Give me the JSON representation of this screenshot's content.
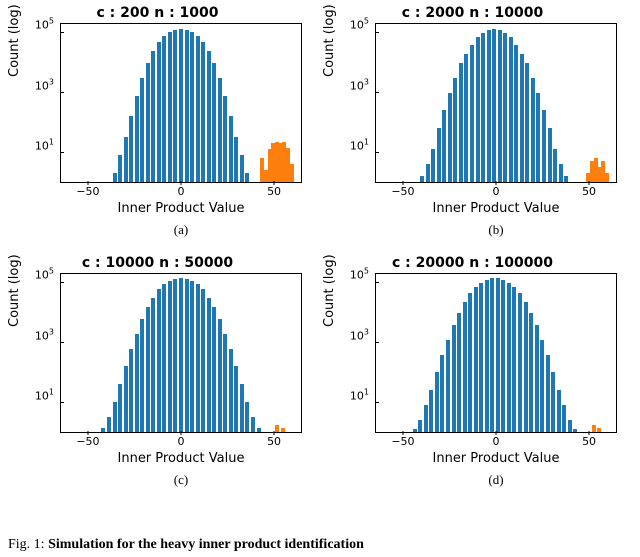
{
  "caption_prefix": "Fig. 1: ",
  "caption_bold": "Simulation for the heavy inner product identification",
  "global": {
    "xlabel": "Inner Product Value",
    "ylabel": "Count (log)",
    "title_fontsize": 14,
    "label_fontsize": 13,
    "tick_fontsize": 11,
    "bar_blue": "#1f77b4",
    "bar_orange": "#ff7f0e",
    "background_color": "#ffffff",
    "border_color": "#000000",
    "xlim": [
      -65,
      65
    ],
    "ylim_log": [
      0,
      5.3
    ],
    "xticks": [
      -50,
      0,
      50
    ],
    "ytick_exponents": [
      1,
      3,
      5
    ],
    "bar_width_units": 2.2
  },
  "panels": [
    {
      "id": "a",
      "title": "c : 200 n : 1000",
      "subcap": "(a)",
      "blue_bars": [
        {
          "x": -36,
          "log_h": 0.3
        },
        {
          "x": -33,
          "log_h": 0.9
        },
        {
          "x": -30,
          "log_h": 1.5
        },
        {
          "x": -27,
          "log_h": 2.2
        },
        {
          "x": -24,
          "log_h": 2.9
        },
        {
          "x": -21,
          "log_h": 3.5
        },
        {
          "x": -18,
          "log_h": 4.0
        },
        {
          "x": -15,
          "log_h": 4.4
        },
        {
          "x": -12,
          "log_h": 4.7
        },
        {
          "x": -9,
          "log_h": 4.9
        },
        {
          "x": -6,
          "log_h": 5.03
        },
        {
          "x": -3,
          "log_h": 5.1
        },
        {
          "x": 0,
          "log_h": 5.12
        },
        {
          "x": 3,
          "log_h": 5.1
        },
        {
          "x": 6,
          "log_h": 5.03
        },
        {
          "x": 9,
          "log_h": 4.9
        },
        {
          "x": 12,
          "log_h": 4.7
        },
        {
          "x": 15,
          "log_h": 4.4
        },
        {
          "x": 18,
          "log_h": 4.0
        },
        {
          "x": 21,
          "log_h": 3.5
        },
        {
          "x": 24,
          "log_h": 2.9
        },
        {
          "x": 27,
          "log_h": 2.2
        },
        {
          "x": 30,
          "log_h": 1.5
        },
        {
          "x": 33,
          "log_h": 0.9
        },
        {
          "x": 36,
          "log_h": 0.3
        }
      ],
      "orange_bars": [
        {
          "x": 44,
          "log_h": 0.8
        },
        {
          "x": 46,
          "log_h": 0.4
        },
        {
          "x": 48,
          "log_h": 1.1
        },
        {
          "x": 50,
          "log_h": 1.3
        },
        {
          "x": 52,
          "log_h": 1.35
        },
        {
          "x": 54,
          "log_h": 1.3
        },
        {
          "x": 56,
          "log_h": 1.35
        },
        {
          "x": 58,
          "log_h": 1.15
        },
        {
          "x": 60,
          "log_h": 0.6
        }
      ]
    },
    {
      "id": "b",
      "title": "c : 2000 n : 10000",
      "subcap": "(b)",
      "blue_bars": [
        {
          "x": -40,
          "log_h": 0.2
        },
        {
          "x": -37,
          "log_h": 0.6
        },
        {
          "x": -34,
          "log_h": 1.1
        },
        {
          "x": -31,
          "log_h": 1.8
        },
        {
          "x": -28,
          "log_h": 2.4
        },
        {
          "x": -25,
          "log_h": 3.0
        },
        {
          "x": -22,
          "log_h": 3.5
        },
        {
          "x": -19,
          "log_h": 4.0
        },
        {
          "x": -16,
          "log_h": 4.3
        },
        {
          "x": -13,
          "log_h": 4.6
        },
        {
          "x": -10,
          "log_h": 4.85
        },
        {
          "x": -7,
          "log_h": 5.0
        },
        {
          "x": -4,
          "log_h": 5.1
        },
        {
          "x": -1,
          "log_h": 5.13
        },
        {
          "x": 2,
          "log_h": 5.1
        },
        {
          "x": 5,
          "log_h": 5.0
        },
        {
          "x": 8,
          "log_h": 4.85
        },
        {
          "x": 11,
          "log_h": 4.6
        },
        {
          "x": 14,
          "log_h": 4.3
        },
        {
          "x": 17,
          "log_h": 4.0
        },
        {
          "x": 20,
          "log_h": 3.5
        },
        {
          "x": 23,
          "log_h": 3.0
        },
        {
          "x": 26,
          "log_h": 2.4
        },
        {
          "x": 29,
          "log_h": 1.8
        },
        {
          "x": 32,
          "log_h": 1.1
        },
        {
          "x": 35,
          "log_h": 0.6
        },
        {
          "x": 38,
          "log_h": 0.2
        }
      ],
      "orange_bars": [
        {
          "x": 50,
          "log_h": 0.3
        },
        {
          "x": 52,
          "log_h": 0.7
        },
        {
          "x": 54,
          "log_h": 0.8
        },
        {
          "x": 56,
          "log_h": 0.5
        },
        {
          "x": 58,
          "log_h": 0.7
        },
        {
          "x": 60,
          "log_h": 0.3
        }
      ]
    },
    {
      "id": "c",
      "title": "c : 10000 n : 50000",
      "subcap": "(c)",
      "blue_bars": [
        {
          "x": -42,
          "log_h": 0.15
        },
        {
          "x": -39,
          "log_h": 0.5
        },
        {
          "x": -36,
          "log_h": 1.0
        },
        {
          "x": -33,
          "log_h": 1.6
        },
        {
          "x": -30,
          "log_h": 2.2
        },
        {
          "x": -27,
          "log_h": 2.8
        },
        {
          "x": -24,
          "log_h": 3.3
        },
        {
          "x": -21,
          "log_h": 3.8
        },
        {
          "x": -18,
          "log_h": 4.2
        },
        {
          "x": -15,
          "log_h": 4.5
        },
        {
          "x": -12,
          "log_h": 4.8
        },
        {
          "x": -9,
          "log_h": 4.95
        },
        {
          "x": -6,
          "log_h": 5.08
        },
        {
          "x": -3,
          "log_h": 5.13
        },
        {
          "x": 0,
          "log_h": 5.15
        },
        {
          "x": 3,
          "log_h": 5.13
        },
        {
          "x": 6,
          "log_h": 5.08
        },
        {
          "x": 9,
          "log_h": 4.95
        },
        {
          "x": 12,
          "log_h": 4.8
        },
        {
          "x": 15,
          "log_h": 4.5
        },
        {
          "x": 18,
          "log_h": 4.2
        },
        {
          "x": 21,
          "log_h": 3.8
        },
        {
          "x": 24,
          "log_h": 3.3
        },
        {
          "x": 27,
          "log_h": 2.8
        },
        {
          "x": 30,
          "log_h": 2.2
        },
        {
          "x": 33,
          "log_h": 1.6
        },
        {
          "x": 36,
          "log_h": 1.0
        },
        {
          "x": 39,
          "log_h": 0.5
        },
        {
          "x": 42,
          "log_h": 0.15
        }
      ],
      "orange_bars": [
        {
          "x": 52,
          "log_h": 0.25
        },
        {
          "x": 55,
          "log_h": 0.15
        }
      ]
    },
    {
      "id": "d",
      "title": "c : 20000 n : 100000",
      "subcap": "(d)",
      "blue_bars": [
        {
          "x": -44,
          "log_h": 0.1
        },
        {
          "x": -41,
          "log_h": 0.4
        },
        {
          "x": -38,
          "log_h": 0.9
        },
        {
          "x": -35,
          "log_h": 1.4
        },
        {
          "x": -32,
          "log_h": 2.0
        },
        {
          "x": -29,
          "log_h": 2.6
        },
        {
          "x": -26,
          "log_h": 3.1
        },
        {
          "x": -23,
          "log_h": 3.6
        },
        {
          "x": -20,
          "log_h": 4.0
        },
        {
          "x": -17,
          "log_h": 4.35
        },
        {
          "x": -14,
          "log_h": 4.65
        },
        {
          "x": -11,
          "log_h": 4.85
        },
        {
          "x": -8,
          "log_h": 5.0
        },
        {
          "x": -5,
          "log_h": 5.1
        },
        {
          "x": -2,
          "log_h": 5.15
        },
        {
          "x": 1,
          "log_h": 5.15
        },
        {
          "x": 4,
          "log_h": 5.1
        },
        {
          "x": 7,
          "log_h": 5.0
        },
        {
          "x": 10,
          "log_h": 4.85
        },
        {
          "x": 13,
          "log_h": 4.65
        },
        {
          "x": 16,
          "log_h": 4.35
        },
        {
          "x": 19,
          "log_h": 4.0
        },
        {
          "x": 22,
          "log_h": 3.6
        },
        {
          "x": 25,
          "log_h": 3.1
        },
        {
          "x": 28,
          "log_h": 2.6
        },
        {
          "x": 31,
          "log_h": 2.0
        },
        {
          "x": 34,
          "log_h": 1.4
        },
        {
          "x": 37,
          "log_h": 0.9
        },
        {
          "x": 40,
          "log_h": 0.4
        },
        {
          "x": 43,
          "log_h": 0.1
        }
      ],
      "orange_bars": [
        {
          "x": 53,
          "log_h": 0.22
        },
        {
          "x": 56,
          "log_h": 0.15
        }
      ]
    }
  ]
}
